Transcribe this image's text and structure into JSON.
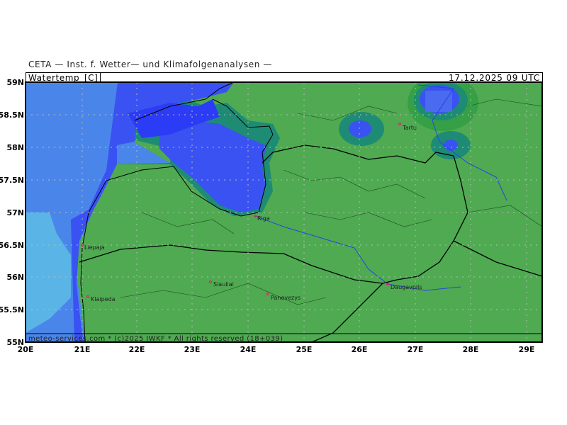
{
  "institution": "CETA — Inst. f. Wetter— und Klimafolgenanalysen —",
  "variable": "Watertemp_[C]",
  "datetime": "17.12.2025  09 UTC",
  "footer": "meteo-services.com * (c)2025 IWKF * All rights reserved (18+039)",
  "axes": {
    "lon_labels": [
      "20E",
      "21E",
      "22E",
      "23E",
      "24E",
      "25E",
      "26E",
      "27E",
      "28E",
      "29E"
    ],
    "lat_labels": [
      "59N",
      "58.5N",
      "58N",
      "57.5N",
      "57N",
      "56.5N",
      "56N",
      "55.5N",
      "55N"
    ]
  },
  "cities": [
    {
      "name": "Liepaja",
      "lon": 21.0,
      "lat": 56.5
    },
    {
      "name": "Klaipeda",
      "lon": 21.13,
      "lat": 55.71
    },
    {
      "name": "Riga",
      "lon": 24.1,
      "lat": 56.95
    },
    {
      "name": "Siauliai",
      "lon": 23.32,
      "lat": 55.93
    },
    {
      "name": "Panevezys",
      "lon": 24.36,
      "lat": 55.73
    },
    {
      "name": "Daugavpils",
      "lon": 26.53,
      "lat": 55.88
    },
    {
      "name": "Tartu",
      "lon": 26.72,
      "lat": 58.37
    }
  ],
  "colors": {
    "land": "#4faa52",
    "sea_open": "#5ab4e6",
    "sea_mid": "#4a86ea",
    "sea_cold": "#3a52f2",
    "sea_coldest": "#2c3cf6",
    "shelf_teal": "#1e8c74",
    "shelf_green": "#35a046"
  }
}
